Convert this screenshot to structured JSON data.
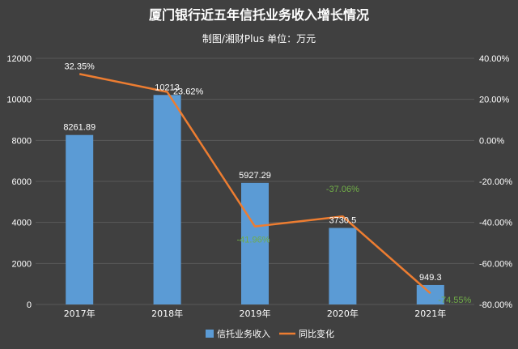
{
  "chart_data": {
    "type": "bar",
    "title": "厦门银行近五年信托业务收入增长情况",
    "subtitle": "制图/湘财Plus 单位：万元",
    "categories": [
      "2017年",
      "2018年",
      "2019年",
      "2020年",
      "2021年"
    ],
    "bar_series": {
      "name": "信托业务收入",
      "values": [
        8261.89,
        10213,
        5927.29,
        3730.5,
        949.3
      ],
      "labels": [
        "8261.89",
        "10213",
        "5927.29",
        "3730.5",
        "949.3"
      ],
      "color": "#5b9bd5"
    },
    "line_series": {
      "name": "同比变化",
      "values": [
        32.35,
        23.62,
        -41.96,
        -37.06,
        -74.55
      ],
      "labels": [
        "32.35%",
        "23.62%",
        "-41.96%",
        "-37.06%",
        "-74.55%"
      ],
      "color": "#ed7d31",
      "label_colors": [
        "#ffffff",
        "#ffffff",
        "#70ad47",
        "#70ad47",
        "#70ad47"
      ]
    },
    "y_left": {
      "min": 0,
      "max": 12000,
      "ticks": [
        "0",
        "2000",
        "4000",
        "6000",
        "8000",
        "10000",
        "12000"
      ]
    },
    "y_right": {
      "min": -80,
      "max": 40,
      "ticks": [
        "-80.00%",
        "-60.00%",
        "-40.00%",
        "-20.00%",
        "0.00%",
        "20.00%",
        "40.00%"
      ]
    },
    "legend_position": "bottom",
    "grid": true,
    "background_color": "#404040",
    "grid_color": "#595959"
  }
}
